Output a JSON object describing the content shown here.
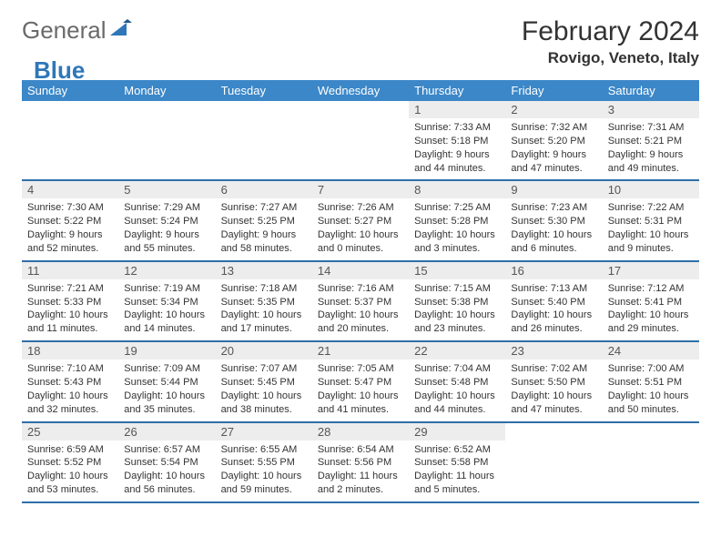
{
  "brand": {
    "part1": "General",
    "part2": "Blue"
  },
  "header": {
    "title": "February 2024",
    "location": "Rovigo, Veneto, Italy"
  },
  "daynames": [
    "Sunday",
    "Monday",
    "Tuesday",
    "Wednesday",
    "Thursday",
    "Friday",
    "Saturday"
  ],
  "colors": {
    "header_bar": "#3b87c8",
    "week_border": "#2f6fa8",
    "daynum_bg": "#ededed",
    "text": "#333333"
  },
  "weeks": [
    [
      {
        "blank": true
      },
      {
        "blank": true
      },
      {
        "blank": true
      },
      {
        "blank": true
      },
      {
        "n": "1",
        "sr": "Sunrise: 7:33 AM",
        "ss": "Sunset: 5:18 PM",
        "d1": "Daylight: 9 hours",
        "d2": "and 44 minutes."
      },
      {
        "n": "2",
        "sr": "Sunrise: 7:32 AM",
        "ss": "Sunset: 5:20 PM",
        "d1": "Daylight: 9 hours",
        "d2": "and 47 minutes."
      },
      {
        "n": "3",
        "sr": "Sunrise: 7:31 AM",
        "ss": "Sunset: 5:21 PM",
        "d1": "Daylight: 9 hours",
        "d2": "and 49 minutes."
      }
    ],
    [
      {
        "n": "4",
        "sr": "Sunrise: 7:30 AM",
        "ss": "Sunset: 5:22 PM",
        "d1": "Daylight: 9 hours",
        "d2": "and 52 minutes."
      },
      {
        "n": "5",
        "sr": "Sunrise: 7:29 AM",
        "ss": "Sunset: 5:24 PM",
        "d1": "Daylight: 9 hours",
        "d2": "and 55 minutes."
      },
      {
        "n": "6",
        "sr": "Sunrise: 7:27 AM",
        "ss": "Sunset: 5:25 PM",
        "d1": "Daylight: 9 hours",
        "d2": "and 58 minutes."
      },
      {
        "n": "7",
        "sr": "Sunrise: 7:26 AM",
        "ss": "Sunset: 5:27 PM",
        "d1": "Daylight: 10 hours",
        "d2": "and 0 minutes."
      },
      {
        "n": "8",
        "sr": "Sunrise: 7:25 AM",
        "ss": "Sunset: 5:28 PM",
        "d1": "Daylight: 10 hours",
        "d2": "and 3 minutes."
      },
      {
        "n": "9",
        "sr": "Sunrise: 7:23 AM",
        "ss": "Sunset: 5:30 PM",
        "d1": "Daylight: 10 hours",
        "d2": "and 6 minutes."
      },
      {
        "n": "10",
        "sr": "Sunrise: 7:22 AM",
        "ss": "Sunset: 5:31 PM",
        "d1": "Daylight: 10 hours",
        "d2": "and 9 minutes."
      }
    ],
    [
      {
        "n": "11",
        "sr": "Sunrise: 7:21 AM",
        "ss": "Sunset: 5:33 PM",
        "d1": "Daylight: 10 hours",
        "d2": "and 11 minutes."
      },
      {
        "n": "12",
        "sr": "Sunrise: 7:19 AM",
        "ss": "Sunset: 5:34 PM",
        "d1": "Daylight: 10 hours",
        "d2": "and 14 minutes."
      },
      {
        "n": "13",
        "sr": "Sunrise: 7:18 AM",
        "ss": "Sunset: 5:35 PM",
        "d1": "Daylight: 10 hours",
        "d2": "and 17 minutes."
      },
      {
        "n": "14",
        "sr": "Sunrise: 7:16 AM",
        "ss": "Sunset: 5:37 PM",
        "d1": "Daylight: 10 hours",
        "d2": "and 20 minutes."
      },
      {
        "n": "15",
        "sr": "Sunrise: 7:15 AM",
        "ss": "Sunset: 5:38 PM",
        "d1": "Daylight: 10 hours",
        "d2": "and 23 minutes."
      },
      {
        "n": "16",
        "sr": "Sunrise: 7:13 AM",
        "ss": "Sunset: 5:40 PM",
        "d1": "Daylight: 10 hours",
        "d2": "and 26 minutes."
      },
      {
        "n": "17",
        "sr": "Sunrise: 7:12 AM",
        "ss": "Sunset: 5:41 PM",
        "d1": "Daylight: 10 hours",
        "d2": "and 29 minutes."
      }
    ],
    [
      {
        "n": "18",
        "sr": "Sunrise: 7:10 AM",
        "ss": "Sunset: 5:43 PM",
        "d1": "Daylight: 10 hours",
        "d2": "and 32 minutes."
      },
      {
        "n": "19",
        "sr": "Sunrise: 7:09 AM",
        "ss": "Sunset: 5:44 PM",
        "d1": "Daylight: 10 hours",
        "d2": "and 35 minutes."
      },
      {
        "n": "20",
        "sr": "Sunrise: 7:07 AM",
        "ss": "Sunset: 5:45 PM",
        "d1": "Daylight: 10 hours",
        "d2": "and 38 minutes."
      },
      {
        "n": "21",
        "sr": "Sunrise: 7:05 AM",
        "ss": "Sunset: 5:47 PM",
        "d1": "Daylight: 10 hours",
        "d2": "and 41 minutes."
      },
      {
        "n": "22",
        "sr": "Sunrise: 7:04 AM",
        "ss": "Sunset: 5:48 PM",
        "d1": "Daylight: 10 hours",
        "d2": "and 44 minutes."
      },
      {
        "n": "23",
        "sr": "Sunrise: 7:02 AM",
        "ss": "Sunset: 5:50 PM",
        "d1": "Daylight: 10 hours",
        "d2": "and 47 minutes."
      },
      {
        "n": "24",
        "sr": "Sunrise: 7:00 AM",
        "ss": "Sunset: 5:51 PM",
        "d1": "Daylight: 10 hours",
        "d2": "and 50 minutes."
      }
    ],
    [
      {
        "n": "25",
        "sr": "Sunrise: 6:59 AM",
        "ss": "Sunset: 5:52 PM",
        "d1": "Daylight: 10 hours",
        "d2": "and 53 minutes."
      },
      {
        "n": "26",
        "sr": "Sunrise: 6:57 AM",
        "ss": "Sunset: 5:54 PM",
        "d1": "Daylight: 10 hours",
        "d2": "and 56 minutes."
      },
      {
        "n": "27",
        "sr": "Sunrise: 6:55 AM",
        "ss": "Sunset: 5:55 PM",
        "d1": "Daylight: 10 hours",
        "d2": "and 59 minutes."
      },
      {
        "n": "28",
        "sr": "Sunrise: 6:54 AM",
        "ss": "Sunset: 5:56 PM",
        "d1": "Daylight: 11 hours",
        "d2": "and 2 minutes."
      },
      {
        "n": "29",
        "sr": "Sunrise: 6:52 AM",
        "ss": "Sunset: 5:58 PM",
        "d1": "Daylight: 11 hours",
        "d2": "and 5 minutes."
      },
      {
        "blank": true
      },
      {
        "blank": true
      }
    ]
  ]
}
